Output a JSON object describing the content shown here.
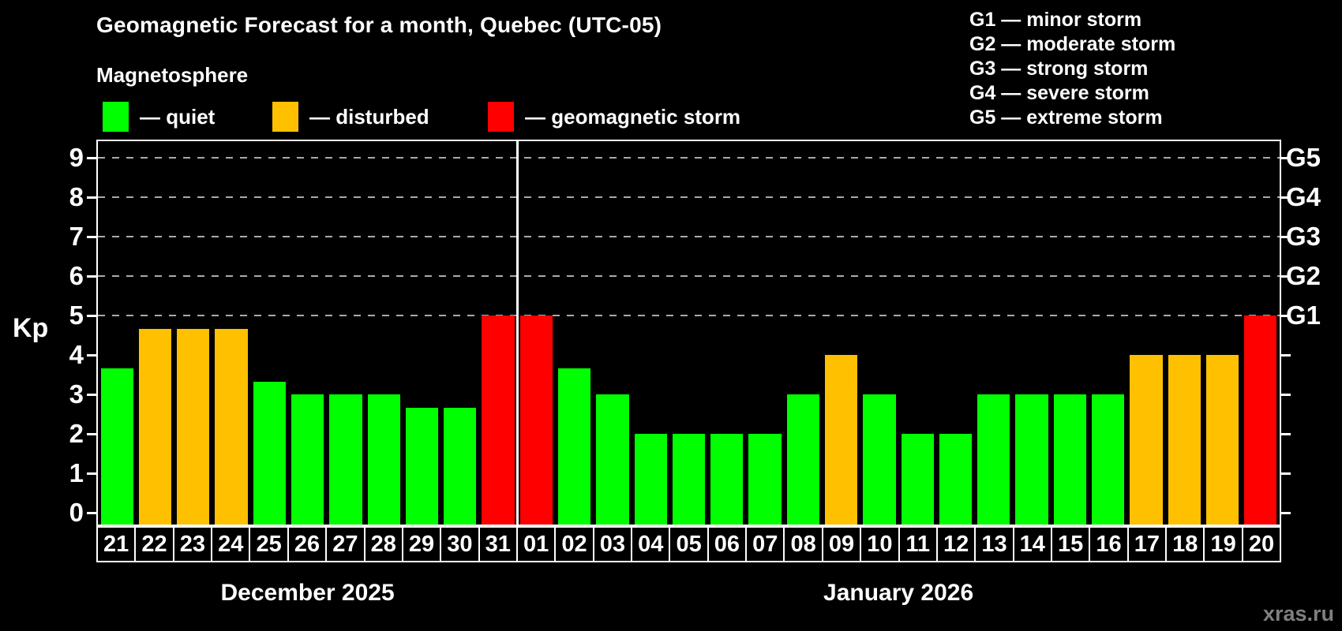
{
  "title": "Geomagnetic Forecast for a month, Quebec (UTC-05)",
  "subtitle": "Magnetosphere",
  "legend": {
    "quiet": "— quiet",
    "disturbed": "— disturbed",
    "storm": "— geomagnetic storm"
  },
  "g_legend": [
    "G1 — minor storm",
    "G2 — moderate storm",
    "G3 — strong storm",
    "G4 — severe storm",
    "G5 — extreme storm"
  ],
  "axis": {
    "y_label": "Kp",
    "y_ticks": [
      0,
      1,
      2,
      3,
      4,
      5,
      6,
      7,
      8,
      9
    ],
    "right_labels": [
      {
        "kp": 5,
        "label": "G1"
      },
      {
        "kp": 6,
        "label": "G2"
      },
      {
        "kp": 7,
        "label": "G3"
      },
      {
        "kp": 8,
        "label": "G4"
      },
      {
        "kp": 9,
        "label": "G5"
      }
    ]
  },
  "months": [
    {
      "label": "December 2025",
      "days": 11
    },
    {
      "label": "January 2026",
      "days": 20
    }
  ],
  "watermark": "xras.ru",
  "colors": {
    "quiet": "#00ff00",
    "disturbed": "#ffc000",
    "storm": "#ff0000",
    "grid": "#aaaaaa",
    "frame": "#ffffff",
    "watermark": "#7f7f7f",
    "background": "#000000"
  },
  "chart_data": {
    "type": "bar",
    "title": "Geomagnetic Forecast for a month, Quebec (UTC-05)",
    "xlabel": "",
    "ylabel": "Kp",
    "ylim": [
      0,
      9
    ],
    "grid": "dashed horizontal at Kp 5-9 only",
    "legend_position": "top-left and top-right",
    "gridlines_at": [
      5,
      6,
      7,
      8,
      9
    ],
    "month_boundary_index": 11,
    "categories": [
      "21",
      "22",
      "23",
      "24",
      "25",
      "26",
      "27",
      "28",
      "29",
      "30",
      "31",
      "01",
      "02",
      "03",
      "04",
      "05",
      "06",
      "07",
      "08",
      "09",
      "10",
      "11",
      "12",
      "13",
      "14",
      "15",
      "16",
      "17",
      "18",
      "19",
      "20"
    ],
    "values": [
      3.67,
      4.67,
      4.67,
      4.67,
      3.33,
      3,
      3,
      3,
      2.67,
      2.67,
      5,
      5,
      3.67,
      3,
      2,
      2,
      2,
      2,
      3,
      4,
      3,
      2,
      2,
      3,
      3,
      3,
      3,
      4,
      4,
      4,
      5
    ],
    "statuses": [
      "quiet",
      "disturbed",
      "disturbed",
      "disturbed",
      "quiet",
      "quiet",
      "quiet",
      "quiet",
      "quiet",
      "quiet",
      "storm",
      "storm",
      "quiet",
      "quiet",
      "quiet",
      "quiet",
      "quiet",
      "quiet",
      "quiet",
      "disturbed",
      "quiet",
      "quiet",
      "quiet",
      "quiet",
      "quiet",
      "quiet",
      "quiet",
      "disturbed",
      "disturbed",
      "disturbed",
      "storm"
    ]
  }
}
